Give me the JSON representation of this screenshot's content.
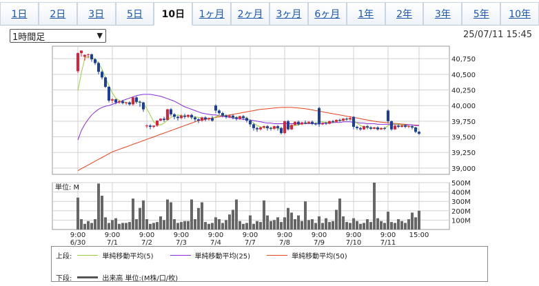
{
  "tabs": [
    {
      "label": "1日",
      "active": false
    },
    {
      "label": "2日",
      "active": false
    },
    {
      "label": "3日",
      "active": false
    },
    {
      "label": "5日",
      "active": false
    },
    {
      "label": "10日",
      "active": true
    },
    {
      "label": "1ヶ月",
      "active": false
    },
    {
      "label": "2ヶ月",
      "active": false
    },
    {
      "label": "3ヶ月",
      "active": false
    },
    {
      "label": "6ヶ月",
      "active": false
    },
    {
      "label": "1年",
      "active": false
    },
    {
      "label": "2年",
      "active": false
    },
    {
      "label": "3年",
      "active": false
    },
    {
      "label": "5年",
      "active": false
    },
    {
      "label": "10年",
      "active": false
    }
  ],
  "interval_select": {
    "value": "1時間足"
  },
  "timestamp": "25/07/11 15:45",
  "colors": {
    "up": "#e0203a",
    "down": "#1a3f9e",
    "ma5": "#9acd32",
    "ma25": "#8a2be2",
    "ma50": "#e8431c",
    "volume": "#666666",
    "grid": "#d0d0d0"
  },
  "chart_data": {
    "type": "candlestick",
    "price_axis": {
      "min": 38900,
      "max": 40950,
      "ticks": [
        39000,
        39250,
        39500,
        39750,
        40000,
        40250,
        40500,
        40750
      ],
      "tick_labels": [
        "39,000",
        "39,250",
        "39,500",
        "39,750",
        "40,000",
        "40,250",
        "40,500",
        "40,750"
      ]
    },
    "volume_axis": {
      "max": 500,
      "ticks": [
        100,
        200,
        300,
        400,
        500
      ],
      "tick_labels": [
        "100M",
        "200M",
        "300M",
        "400M",
        "500M"
      ],
      "label": "単位: M"
    },
    "x_labels": [
      {
        "idx": 0,
        "time": "9:00",
        "date": "6/30"
      },
      {
        "idx": 10,
        "time": "9:00",
        "date": "7/1"
      },
      {
        "idx": 20,
        "time": "9:00",
        "date": "7/2"
      },
      {
        "idx": 30,
        "time": "9:00",
        "date": "7/3"
      },
      {
        "idx": 40,
        "time": "9:00",
        "date": "7/4"
      },
      {
        "idx": 50,
        "time": "9:00",
        "date": "7/7"
      },
      {
        "idx": 60,
        "time": "9:00",
        "date": "7/8"
      },
      {
        "idx": 70,
        "time": "9:00",
        "date": "7/9"
      },
      {
        "idx": 80,
        "time": "9:00",
        "date": "7/10"
      },
      {
        "idx": 90,
        "time": "9:00",
        "date": "7/11"
      },
      {
        "idx": 99,
        "time": "15:00",
        "date": ""
      }
    ],
    "candles": [
      [
        40550,
        40850,
        40840,
        40520
      ],
      [
        40840,
        40880,
        40880,
        40780
      ],
      [
        40780,
        40820,
        40810,
        40720
      ],
      [
        40810,
        40830,
        40820,
        40760
      ],
      [
        40820,
        40830,
        40740,
        40700
      ],
      [
        40740,
        40760,
        40680,
        40650
      ],
      [
        40680,
        40700,
        40540,
        40500
      ],
      [
        40540,
        40560,
        40450,
        40420
      ],
      [
        40450,
        40460,
        40300,
        40280
      ],
      [
        40300,
        40310,
        40080,
        40050
      ],
      [
        40080,
        40120,
        40100,
        40040
      ],
      [
        40100,
        40110,
        40050,
        40020
      ],
      [
        40050,
        40080,
        40070,
        40030
      ],
      [
        40070,
        40090,
        40040,
        40020
      ],
      [
        40040,
        40060,
        40050,
        40010
      ],
      [
        40050,
        40070,
        40020,
        40000
      ],
      [
        40020,
        40140,
        40130,
        40000
      ],
      [
        40130,
        40150,
        40060,
        40030
      ],
      [
        40060,
        40080,
        40050,
        39980
      ],
      [
        40050,
        40060,
        39940,
        39900
      ],
      [
        39680,
        39700,
        39680,
        39640
      ],
      [
        39680,
        39700,
        39660,
        39620
      ],
      [
        39660,
        39680,
        39680,
        39640
      ],
      [
        39680,
        39760,
        39760,
        39660
      ],
      [
        39760,
        39800,
        39790,
        39750
      ],
      [
        39790,
        39820,
        39770,
        39740
      ],
      [
        39770,
        39950,
        39940,
        39760
      ],
      [
        39940,
        39960,
        39860,
        39830
      ],
      [
        39860,
        39880,
        39820,
        39780
      ],
      [
        39820,
        39840,
        39800,
        39760
      ],
      [
        39800,
        39860,
        39840,
        39780
      ],
      [
        39840,
        39870,
        39820,
        39790
      ],
      [
        39820,
        39860,
        39850,
        39800
      ],
      [
        39850,
        39870,
        39810,
        39780
      ],
      [
        39810,
        39830,
        39780,
        39740
      ],
      [
        39780,
        39800,
        39760,
        39720
      ],
      [
        39760,
        39820,
        39810,
        39740
      ],
      [
        39810,
        39830,
        39780,
        39750
      ],
      [
        39780,
        39810,
        39800,
        39760
      ],
      [
        39800,
        39830,
        39760,
        39740
      ],
      [
        40000,
        40020,
        39920,
        39880
      ],
      [
        39920,
        39940,
        39880,
        39850
      ],
      [
        39880,
        39900,
        39840,
        39810
      ],
      [
        39840,
        39860,
        39820,
        39790
      ],
      [
        39820,
        39850,
        39840,
        39800
      ],
      [
        39840,
        39860,
        39810,
        39780
      ],
      [
        39810,
        39830,
        39790,
        39760
      ],
      [
        39790,
        39840,
        39830,
        39770
      ],
      [
        39830,
        39850,
        39800,
        39770
      ],
      [
        39800,
        39820,
        39760,
        39730
      ],
      [
        39760,
        39780,
        39700,
        39660
      ],
      [
        39700,
        39720,
        39640,
        39600
      ],
      [
        39640,
        39660,
        39620,
        39580
      ],
      [
        39620,
        39660,
        39650,
        39600
      ],
      [
        39650,
        39680,
        39670,
        39630
      ],
      [
        39670,
        39690,
        39640,
        39600
      ],
      [
        39640,
        39660,
        39630,
        39600
      ],
      [
        39630,
        39680,
        39670,
        39610
      ],
      [
        39670,
        39690,
        39640,
        39600
      ],
      [
        39640,
        39660,
        39560,
        39540
      ],
      [
        39560,
        39760,
        39750,
        39540
      ],
      [
        39750,
        39770,
        39620,
        39600
      ],
      [
        39620,
        39700,
        39690,
        39610
      ],
      [
        39690,
        39750,
        39740,
        39680
      ],
      [
        39740,
        39760,
        39700,
        39680
      ],
      [
        39700,
        39740,
        39730,
        39690
      ],
      [
        39730,
        39760,
        39720,
        39700
      ],
      [
        39720,
        39750,
        39740,
        39710
      ],
      [
        39740,
        39760,
        39710,
        39690
      ],
      [
        39710,
        39730,
        39700,
        39680
      ],
      [
        39960,
        39980,
        39700,
        39660
      ],
      [
        39700,
        39730,
        39720,
        39690
      ],
      [
        39720,
        39740,
        39710,
        39690
      ],
      [
        39710,
        39760,
        39750,
        39700
      ],
      [
        39750,
        39770,
        39740,
        39720
      ],
      [
        39740,
        39780,
        39770,
        39730
      ],
      [
        39770,
        39790,
        39760,
        39740
      ],
      [
        39760,
        39800,
        39790,
        39750
      ],
      [
        39790,
        39810,
        39780,
        39760
      ],
      [
        39780,
        39830,
        39800,
        39760
      ],
      [
        39820,
        39830,
        39660,
        39620
      ],
      [
        39660,
        39680,
        39640,
        39610
      ],
      [
        39640,
        39660,
        39620,
        39600
      ],
      [
        39620,
        39680,
        39670,
        39610
      ],
      [
        39670,
        39690,
        39650,
        39620
      ],
      [
        39650,
        39670,
        39630,
        39610
      ],
      [
        39630,
        39660,
        39650,
        39620
      ],
      [
        39650,
        39670,
        39620,
        39600
      ],
      [
        39620,
        39650,
        39640,
        39610
      ],
      [
        39640,
        39660,
        39630,
        39610
      ],
      [
        39920,
        39940,
        39750,
        39720
      ],
      [
        39750,
        39760,
        39620,
        39600
      ],
      [
        39620,
        39690,
        39680,
        39610
      ],
      [
        39680,
        39700,
        39660,
        39640
      ],
      [
        39660,
        39690,
        39680,
        39650
      ],
      [
        39680,
        39700,
        39660,
        39640
      ],
      [
        39660,
        39680,
        39670,
        39640
      ],
      [
        39670,
        39690,
        39650,
        39620
      ],
      [
        39650,
        39660,
        39580,
        39560
      ],
      [
        39580,
        39600,
        39550,
        39530
      ]
    ],
    "volume": [
      340,
      110,
      60,
      90,
      70,
      110,
      490,
      360,
      130,
      70,
      100,
      120,
      60,
      70,
      70,
      80,
      330,
      110,
      230,
      310,
      110,
      60,
      70,
      80,
      140,
      100,
      320,
      290,
      110,
      70,
      80,
      90,
      90,
      320,
      110,
      230,
      290,
      80,
      60,
      70,
      130,
      110,
      70,
      100,
      160,
      210,
      320,
      90,
      60,
      70,
      150,
      60,
      90,
      80,
      310,
      150,
      90,
      100,
      130,
      80,
      130,
      230,
      180,
      110,
      150,
      90,
      300,
      100,
      110,
      70,
      140,
      70,
      120,
      80,
      90,
      210,
      330,
      140,
      80,
      70,
      120,
      90,
      60,
      70,
      110,
      80,
      500,
      120,
      90,
      70,
      190,
      80,
      70,
      110,
      90,
      70,
      110,
      180,
      130,
      200
    ],
    "ma5": [
      40240,
      40520,
      40760,
      40780,
      40770,
      40740,
      40680,
      40580,
      40450,
      40320,
      40200,
      40120,
      40080,
      40060,
      40050,
      40040,
      40050,
      40060,
      40060,
      40040,
      39950,
      39850,
      39740,
      39700,
      39690,
      39720,
      39770,
      39810,
      39840,
      39850,
      39840,
      39830,
      39830,
      39830,
      39820,
      39810,
      39800,
      39800,
      39790,
      39790,
      39820,
      39840,
      39850,
      39840,
      39820,
      39810,
      39810,
      39810,
      39810,
      39800,
      39760,
      39720,
      39680,
      39660,
      39650,
      39640,
      39640,
      39640,
      39640,
      39620,
      39640,
      39660,
      39670,
      39680,
      39690,
      39710,
      39720,
      39720,
      39720,
      39720,
      39740,
      39740,
      39730,
      39730,
      39740,
      39750,
      39760,
      39770,
      39780,
      39790,
      39760,
      39720,
      39680,
      39660,
      39650,
      39640,
      39640,
      39640,
      39630,
      39630,
      39680,
      39700,
      39710,
      39700,
      39690,
      39680,
      39670,
      39660,
      39640,
      39620
    ],
    "ma25": [
      39450,
      39600,
      39700,
      39780,
      39850,
      39900,
      39940,
      39970,
      39990,
      40000,
      40020,
      40040,
      40060,
      40080,
      40100,
      40120,
      40140,
      40160,
      40170,
      40180,
      40180,
      40180,
      40170,
      40160,
      40150,
      40130,
      40110,
      40090,
      40070,
      40040,
      40010,
      39980,
      39960,
      39940,
      39920,
      39900,
      39880,
      39870,
      39860,
      39850,
      39850,
      39840,
      39830,
      39820,
      39810,
      39800,
      39790,
      39790,
      39780,
      39780,
      39770,
      39760,
      39750,
      39740,
      39730,
      39720,
      39720,
      39710,
      39710,
      39710,
      39710,
      39710,
      39710,
      39710,
      39710,
      39710,
      39710,
      39710,
      39710,
      39710,
      39710,
      39720,
      39720,
      39720,
      39730,
      39730,
      39730,
      39740,
      39740,
      39740,
      39730,
      39730,
      39720,
      39720,
      39710,
      39710,
      39710,
      39700,
      39700,
      39700,
      39700,
      39700,
      39700,
      39700,
      39690,
      39690,
      39690,
      39690,
      39680,
      39680
    ],
    "ma50": [
      38960,
      38990,
      39020,
      39050,
      39080,
      39110,
      39140,
      39170,
      39200,
      39230,
      39260,
      39280,
      39300,
      39320,
      39340,
      39360,
      39380,
      39400,
      39420,
      39440,
      39460,
      39480,
      39500,
      39520,
      39540,
      39560,
      39580,
      39600,
      39620,
      39640,
      39660,
      39680,
      39700,
      39720,
      39740,
      39760,
      39770,
      39780,
      39790,
      39800,
      39810,
      39820,
      39830,
      39840,
      39850,
      39860,
      39870,
      39880,
      39890,
      39900,
      39910,
      39920,
      39930,
      39940,
      39945,
      39950,
      39955,
      39960,
      39965,
      39970,
      39970,
      39970,
      39970,
      39965,
      39960,
      39955,
      39950,
      39940,
      39930,
      39920,
      39910,
      39900,
      39890,
      39880,
      39870,
      39860,
      39850,
      39840,
      39830,
      39820,
      39810,
      39800,
      39790,
      39780,
      39770,
      39760,
      39750,
      39740,
      39735,
      39730,
      39725,
      39720,
      39715,
      39710,
      39705,
      39700,
      39695,
      39690,
      39688,
      39685
    ]
  },
  "volume_panel_label": "単位: M",
  "legend": {
    "upper_label": "上段:",
    "lower_label": "下段:",
    "ma5": "単純移動平均(5)",
    "ma25": "単純移動平均(25)",
    "ma50": "単純移動平均(50)",
    "volume": "出来高 単位:(M株/口/枚)"
  }
}
